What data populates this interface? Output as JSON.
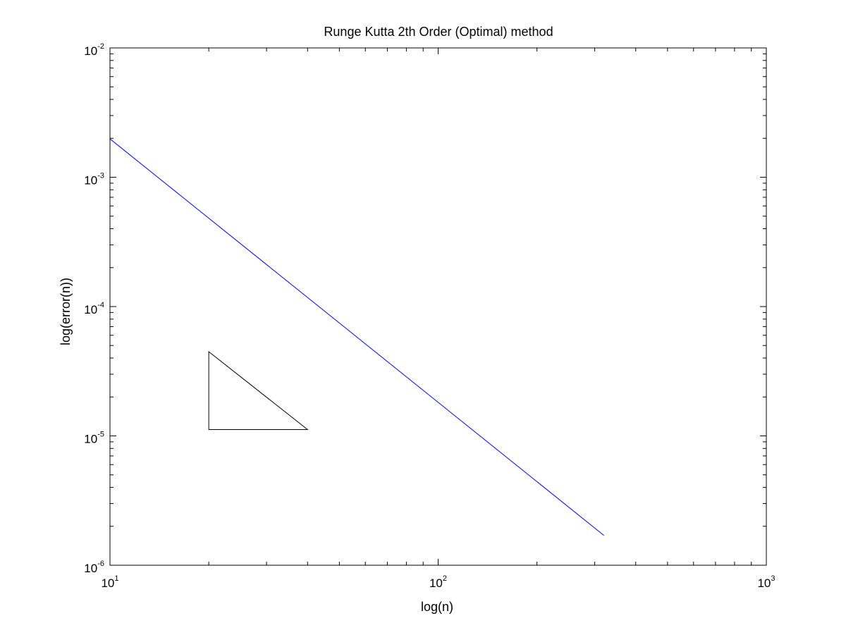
{
  "chart_data": {
    "type": "line",
    "title": "Runge Kutta 2th Order (Optimal) method",
    "xlabel": "log(n)",
    "ylabel": "log(error(n))",
    "xscale": "log",
    "yscale": "log",
    "xlim": [
      10,
      1000
    ],
    "ylim": [
      1e-06,
      0.01
    ],
    "grid": false,
    "legend": "none",
    "x_ticks": [
      {
        "base": "10",
        "exp": "1",
        "value": 10
      },
      {
        "base": "10",
        "exp": "2",
        "value": 100
      },
      {
        "base": "10",
        "exp": "3",
        "value": 1000
      }
    ],
    "y_ticks": [
      {
        "base": "10",
        "exp": "-6",
        "value": 1e-06
      },
      {
        "base": "10",
        "exp": "-5",
        "value": 1e-05
      },
      {
        "base": "10",
        "exp": "-4",
        "value": 0.0001
      },
      {
        "base": "10",
        "exp": "-3",
        "value": 0.001
      },
      {
        "base": "10",
        "exp": "-2",
        "value": 0.01
      }
    ],
    "series": [
      {
        "color": "#0000ff",
        "x": [
          10,
          320
        ],
        "y": [
          0.00198,
          1.7e-06
        ]
      }
    ],
    "annotations": [
      {
        "type": "slope-triangle",
        "color": "#000000",
        "vertices": [
          [
            20,
            1.12e-05
          ],
          [
            40,
            1.12e-05
          ],
          [
            20,
            4.48e-05
          ]
        ]
      }
    ]
  }
}
